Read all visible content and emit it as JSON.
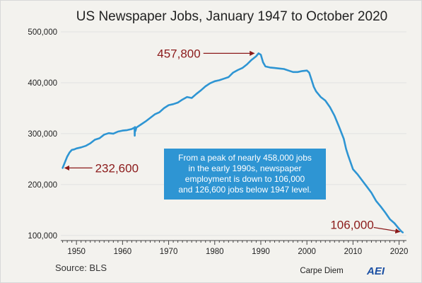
{
  "chart_data": {
    "type": "line",
    "title": "US Newspaper Jobs, January 1947 to October 2020",
    "xlabel": "",
    "ylabel": "",
    "xlim": [
      1946.6,
      2021.6
    ],
    "ylim": [
      90000,
      500000
    ],
    "x_ticks": [
      1950,
      1960,
      1970,
      1980,
      1990,
      2000,
      2010,
      2020
    ],
    "y_ticks": [
      100000,
      200000,
      300000,
      400000,
      500000
    ],
    "y_tick_labels": [
      "100,000",
      "200,000",
      "300,000",
      "400,000",
      "500,000"
    ],
    "x_tick_labels": [
      "1950",
      "1960",
      "1970",
      "1980",
      "1990",
      "2000",
      "2010",
      "2020"
    ],
    "grid": {
      "horizontal": true,
      "vertical": false
    },
    "series": [
      {
        "color": "#2e95d3",
        "x": [
          1947.0,
          1947.5,
          1948.0,
          1948.5,
          1949.0,
          1949.5,
          1950.0,
          1951.0,
          1952.0,
          1953.0,
          1954.0,
          1955.0,
          1956.0,
          1957.0,
          1958.0,
          1959.0,
          1960.0,
          1961.0,
          1962.0,
          1962.6,
          1962.65,
          1962.7,
          1962.8,
          1963.0,
          1964.0,
          1965.0,
          1966.0,
          1967.0,
          1968.0,
          1969.0,
          1970.0,
          1971.0,
          1972.0,
          1973.0,
          1974.0,
          1975.0,
          1976.0,
          1977.0,
          1978.0,
          1979.0,
          1980.0,
          1981.0,
          1982.0,
          1983.0,
          1984.0,
          1985.0,
          1986.0,
          1987.0,
          1988.0,
          1989.0,
          1989.5,
          1990.0,
          1990.5,
          1991.0,
          1992.0,
          1993.0,
          1994.0,
          1995.0,
          1996.0,
          1997.0,
          1998.0,
          1999.0,
          2000.0,
          2000.5,
          2001.0,
          2001.5,
          2002.0,
          2003.0,
          2004.0,
          2005.0,
          2006.0,
          2007.0,
          2008.0,
          2008.5,
          2009.0,
          2009.5,
          2010.0,
          2011.0,
          2012.0,
          2013.0,
          2014.0,
          2015.0,
          2016.0,
          2017.0,
          2018.0,
          2019.0,
          2020.0,
          2020.5,
          2020.8
        ],
        "y": [
          232600,
          244000,
          255000,
          263000,
          268000,
          269000,
          271000,
          273000,
          276000,
          281000,
          288000,
          291000,
          298000,
          301000,
          300000,
          304000,
          306000,
          307000,
          309000,
          312000,
          296000,
          313000,
          305000,
          312000,
          318000,
          324000,
          331000,
          338000,
          342000,
          350000,
          356000,
          358000,
          361000,
          367000,
          372000,
          370000,
          378000,
          385000,
          393000,
          399000,
          403000,
          405000,
          408000,
          411000,
          420000,
          425000,
          429000,
          436000,
          445000,
          452000,
          457800,
          455000,
          440000,
          432000,
          430000,
          429000,
          428000,
          427000,
          424000,
          421000,
          421000,
          423000,
          424000,
          420000,
          406000,
          392000,
          383000,
          372000,
          365000,
          352000,
          335000,
          313000,
          290000,
          270000,
          256000,
          243000,
          230000,
          220000,
          208000,
          196000,
          184000,
          168000,
          157000,
          145000,
          132000,
          124000,
          113000,
          108000,
          106000
        ]
      }
    ],
    "annotations": [
      {
        "text": "232,600",
        "x": 1947.0,
        "y": 232600
      },
      {
        "text": "457,800",
        "x": 1989.5,
        "y": 457800
      },
      {
        "text": "106,000",
        "x": 2020.8,
        "y": 106000
      }
    ],
    "callout": {
      "lines": [
        "From a peak of nearly 458,000 jobs",
        "in the early 1990s, newspaper",
        "employment is down to 106,000",
        "and 126,600 jobs below 1947 level."
      ],
      "background": "#2e95d3",
      "text_color": "#ffffff"
    },
    "annotation_color": "#8b1a1a"
  },
  "source": "Source: BLS",
  "brand": {
    "text": "Carpe Diem",
    "mark": "AEI"
  },
  "colors": {
    "background": "#f3f2ee",
    "line": "#2e95d3",
    "annotation": "#8b1a1a",
    "brand": "#1a4fa3"
  }
}
